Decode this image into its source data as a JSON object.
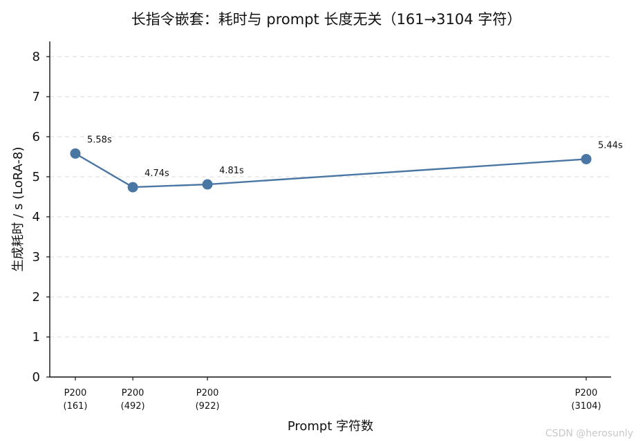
{
  "chart_data": {
    "type": "line",
    "title": "长指令嵌套：耗时与 prompt 长度无关（161→3104 字符）",
    "xlabel": "Prompt 字符数",
    "ylabel": "生成耗时 / s (LoRA-8)",
    "x": [
      161,
      492,
      922,
      3104
    ],
    "tick_labels": [
      [
        "P200",
        "(161)"
      ],
      [
        "P200",
        "(492)"
      ],
      [
        "P200",
        "(922)"
      ],
      [
        "P200",
        "(3104)"
      ]
    ],
    "series": [
      {
        "values": [
          5.58,
          4.74,
          4.81,
          5.44
        ],
        "color": "#4a76a3"
      }
    ],
    "data_labels": [
      "5.58s",
      "4.74s",
      "4.81s",
      "5.44s"
    ],
    "xlim": [
      161,
      3104
    ],
    "ylim": [
      0,
      8
    ],
    "yticks": [
      "0",
      "1",
      "2",
      "3",
      "4",
      "5",
      "6",
      "7",
      "8"
    ],
    "grid": "y-dashed",
    "legend": "none"
  },
  "watermark": "CSDN @herosunly"
}
